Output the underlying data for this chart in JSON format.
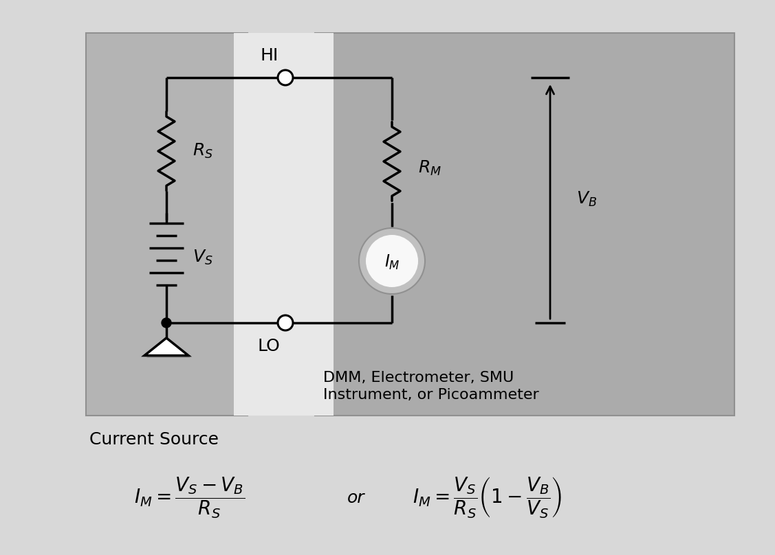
{
  "bg_color": "#d8d8d8",
  "left_panel_color": "#b4b4b4",
  "right_panel_color": "#ababab",
  "white_stripe_color": "#e8e8e8",
  "line_color": "#000000",
  "text_color": "#000000",
  "current_source_label": "Current Source",
  "dmm_label_line1": "DMM, Electrometer, SMU",
  "dmm_label_line2": "Instrument, or Picoammeter",
  "HI_label": "HI",
  "LO_label": "LO",
  "Rs_label": "$R_S$",
  "Vs_label": "$V_S$",
  "Rm_label": "$R_M$",
  "Im_label": "$I_M$",
  "Vb_label": "$V_B$",
  "formula1": "$I_M = \\dfrac{V_S - V_B}{R_S}$",
  "formula_or": "or",
  "formula2": "$I_M = \\dfrac{V_S}{R_S}\\left(1 - \\dfrac{V_B}{V_S}\\right)$"
}
